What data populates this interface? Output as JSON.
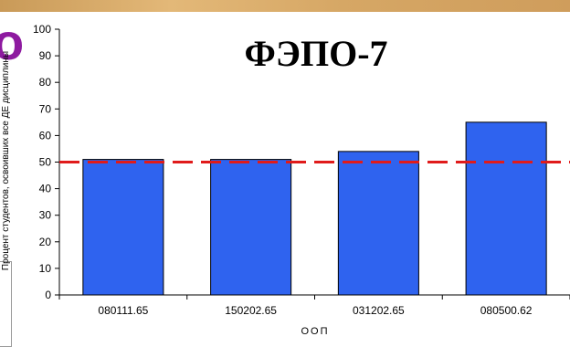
{
  "edge_fragment": {
    "letter": "о"
  },
  "chart_data": {
    "type": "bar",
    "title": "ФЭПО-7",
    "xlabel": "ООП",
    "ylabel": "Процент студентов, освоивших все ДЕ дисциплины",
    "categories": [
      "080111.65",
      "150202.65",
      "031202.65",
      "080500.62"
    ],
    "values": [
      51,
      51,
      54,
      65
    ],
    "ylim": [
      0,
      100
    ],
    "yticks": [
      0,
      10,
      20,
      30,
      40,
      50,
      60,
      70,
      80,
      90,
      100
    ],
    "ytick_labels": [
      "0",
      "10",
      "20",
      "30",
      "40",
      "50",
      "60",
      "70",
      "80",
      "90",
      "100"
    ],
    "reference_line": {
      "value": 50,
      "color": "#e01b1b",
      "style": "dashed"
    },
    "bar_color": "#2f63ef",
    "grid": false,
    "legend": "none"
  }
}
